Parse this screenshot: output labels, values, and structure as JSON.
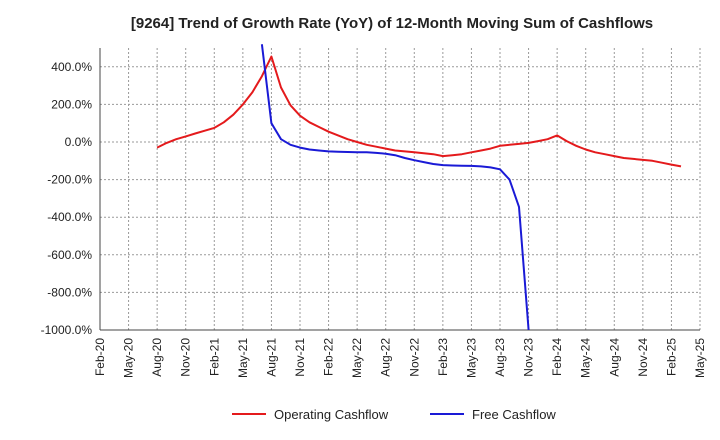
{
  "chart_data": {
    "type": "line",
    "title": "[9264]  Trend of Growth Rate (YoY) of 12-Month Moving Sum of Cashflows",
    "xlabel": "",
    "ylabel": "",
    "ylim": [
      -1000,
      500
    ],
    "y_ticks": [
      400,
      200,
      0,
      -200,
      -400,
      -600,
      -800,
      -1000
    ],
    "y_tick_labels": [
      "400.0%",
      "200.0%",
      "0.0%",
      "-200.0%",
      "-400.0%",
      "-600.0%",
      "-800.0%",
      "-1000.0%"
    ],
    "x_tick_labels": [
      "Feb-20",
      "May-20",
      "Aug-20",
      "Nov-20",
      "Feb-21",
      "May-21",
      "Aug-21",
      "Nov-21",
      "Feb-22",
      "May-22",
      "Aug-22",
      "Nov-22",
      "Feb-23",
      "May-23",
      "Aug-23",
      "Nov-23",
      "Feb-24",
      "May-24",
      "Aug-24",
      "Nov-24",
      "Feb-25",
      "May-25"
    ],
    "grid": true,
    "legend_position": "bottom-center",
    "series": [
      {
        "name": "Operating Cashflow",
        "color": "#e41a1c",
        "points": [
          [
            "Aug-20",
            -30
          ],
          [
            "Sep-20",
            -5
          ],
          [
            "Oct-20",
            15
          ],
          [
            "Nov-20",
            30
          ],
          [
            "Dec-20",
            45
          ],
          [
            "Jan-21",
            60
          ],
          [
            "Feb-21",
            75
          ],
          [
            "Mar-21",
            105
          ],
          [
            "Apr-21",
            145
          ],
          [
            "May-21",
            200
          ],
          [
            "Jun-21",
            265
          ],
          [
            "Jul-21",
            350
          ],
          [
            "Aug-21",
            455
          ],
          [
            "Sep-21",
            290
          ],
          [
            "Oct-21",
            195
          ],
          [
            "Nov-21",
            140
          ],
          [
            "Dec-21",
            105
          ],
          [
            "Jan-22",
            80
          ],
          [
            "Feb-22",
            55
          ],
          [
            "Mar-22",
            35
          ],
          [
            "Apr-22",
            15
          ],
          [
            "May-22",
            0
          ],
          [
            "Jun-22",
            -15
          ],
          [
            "Jul-22",
            -25
          ],
          [
            "Aug-22",
            -35
          ],
          [
            "Sep-22",
            -45
          ],
          [
            "Oct-22",
            -50
          ],
          [
            "Nov-22",
            -55
          ],
          [
            "Dec-22",
            -60
          ],
          [
            "Jan-23",
            -65
          ],
          [
            "Feb-23",
            -75
          ],
          [
            "Mar-23",
            -70
          ],
          [
            "Apr-23",
            -65
          ],
          [
            "May-23",
            -55
          ],
          [
            "Jun-23",
            -45
          ],
          [
            "Jul-23",
            -35
          ],
          [
            "Aug-23",
            -20
          ],
          [
            "Sep-23",
            -15
          ],
          [
            "Oct-23",
            -10
          ],
          [
            "Nov-23",
            -5
          ],
          [
            "Dec-23",
            5
          ],
          [
            "Jan-24",
            15
          ],
          [
            "Feb-24",
            35
          ],
          [
            "Mar-24",
            5
          ],
          [
            "Apr-24",
            -20
          ],
          [
            "May-24",
            -40
          ],
          [
            "Jun-24",
            -55
          ],
          [
            "Jul-24",
            -65
          ],
          [
            "Aug-24",
            -75
          ],
          [
            "Sep-24",
            -85
          ],
          [
            "Oct-24",
            -90
          ],
          [
            "Nov-24",
            -95
          ],
          [
            "Dec-24",
            -100
          ],
          [
            "Jan-25",
            -110
          ],
          [
            "Feb-25",
            -120
          ],
          [
            "Mar-25",
            -130
          ]
        ]
      },
      {
        "name": "Free Cashflow",
        "color": "#1a1ad6",
        "points": [
          [
            "Jul-21",
            520
          ],
          [
            "Aug-21",
            100
          ],
          [
            "Sep-21",
            15
          ],
          [
            "Oct-21",
            -15
          ],
          [
            "Nov-21",
            -30
          ],
          [
            "Dec-21",
            -40
          ],
          [
            "Jan-22",
            -45
          ],
          [
            "Feb-22",
            -50
          ],
          [
            "Mar-22",
            -52
          ],
          [
            "Apr-22",
            -53
          ],
          [
            "May-22",
            -54
          ],
          [
            "Jun-22",
            -55
          ],
          [
            "Jul-22",
            -58
          ],
          [
            "Aug-22",
            -62
          ],
          [
            "Sep-22",
            -70
          ],
          [
            "Oct-22",
            -85
          ],
          [
            "Nov-22",
            -97
          ],
          [
            "Dec-22",
            -107
          ],
          [
            "Jan-23",
            -117
          ],
          [
            "Feb-23",
            -123
          ],
          [
            "Mar-23",
            -125
          ],
          [
            "Apr-23",
            -126
          ],
          [
            "May-23",
            -127
          ],
          [
            "Jun-23",
            -130
          ],
          [
            "Jul-23",
            -135
          ],
          [
            "Aug-23",
            -145
          ],
          [
            "Sep-23",
            -200
          ],
          [
            "Oct-23",
            -345
          ],
          [
            "Nov-23",
            -1000
          ]
        ]
      }
    ]
  }
}
